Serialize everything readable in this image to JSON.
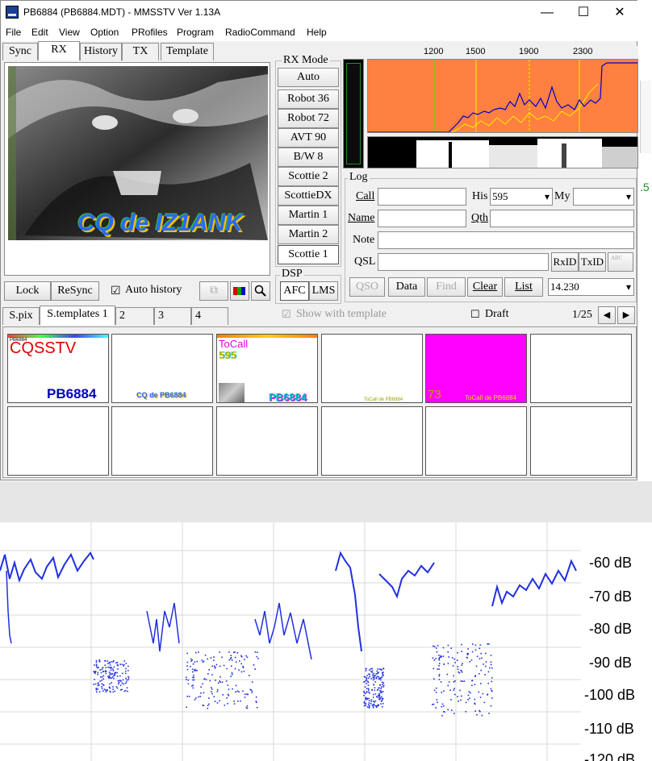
{
  "window": {
    "title": "PB6884 (PB6884.MDT) - MMSSTV Ver 1.13A",
    "controls": {
      "minimize": "—",
      "maximize": "☐",
      "close": "✕"
    }
  },
  "menu": [
    "File",
    "Edit",
    "View",
    "Option",
    "PRofiles",
    "Program",
    "RadioCommand",
    "Help"
  ],
  "tabs": [
    "Sync",
    "RX",
    "History",
    "TX",
    "Template"
  ],
  "active_tab": "RX",
  "rx_image": {
    "overlay_text": "CQ de IZ1ANK"
  },
  "rx_mode": {
    "title": "RX Mode",
    "buttons": [
      "Auto",
      "Robot 36",
      "Robot 72",
      "AVT 90",
      "B/W 8",
      "Scottie 2",
      "ScottieDX",
      "Martin 1",
      "Martin 2",
      "Scottie 1"
    ],
    "selected": "Scottie 1"
  },
  "spectrum": {
    "ticks": [
      "1200",
      "1500",
      "1900",
      "2300"
    ],
    "bg_color": "#ff8040",
    "trace_color": "#0000cc"
  },
  "rx_controls": {
    "lock": "Lock",
    "resync": "ReSync",
    "auto_history": "Auto history",
    "auto_history_checked": "☑"
  },
  "dsp": {
    "title": "DSP",
    "afc": "AFC",
    "lms": "LMS"
  },
  "log": {
    "title": "Log",
    "call_label": "Call",
    "his_label": "His",
    "his_value": "595",
    "my_label": "My",
    "name_label": "Name",
    "qth_label": "Qth",
    "note_label": "Note",
    "qsl_label": "QSL",
    "rxid": "RxID",
    "txid": "TxID",
    "abc": "ABC",
    "qso": "QSO",
    "data": "Data",
    "find": "Find",
    "clear": "Clear",
    "list": "List",
    "freq": "14.230"
  },
  "template_tabs": [
    "S.pix",
    "S.templates 1",
    "2",
    "3",
    "4"
  ],
  "show_with_template": "Show with template",
  "show_with_template_mark": "☑",
  "draft": "Draft",
  "draft_mark": "☐",
  "page_indicator": "1/25",
  "page_nav": {
    "prev": "◀",
    "next": "▶"
  },
  "thumbnails": [
    {
      "top_text": "PB6884",
      "line1": "CQSSTV",
      "line2": "PB6884"
    },
    {
      "bottom_text": "CQ de PB6884"
    },
    {
      "line1": "ToCall",
      "line2": "595",
      "bottom_text": "PB6884"
    },
    {
      "bottom_text": "ToCall de PB6884"
    },
    {
      "line1": "73",
      "bottom_text": "ToCall de PB6884",
      "bg": "#ff00ff"
    },
    {}
  ],
  "extra_visible": {
    "side_digit": ".5"
  },
  "waterfall_plot": {
    "y_labels": [
      "-60 dB",
      "-70 dB",
      "-80 dB",
      "-90 dB",
      "-100 dB",
      "-110 dB",
      "-120 dB"
    ],
    "trace_color": "#2030e0"
  }
}
